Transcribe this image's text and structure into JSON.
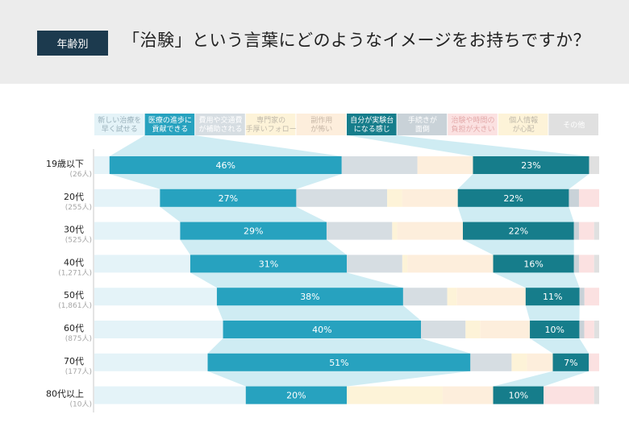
{
  "header": {
    "tag": "年齢別",
    "title": "「治験」という言葉にどのようなイメージをお持ちですか？"
  },
  "chart_data": {
    "type": "bar",
    "stacked": true,
    "orientation": "horizontal",
    "percent": true,
    "series": [
      {
        "name": "新しい治療を早く試せる",
        "label_lines": [
          "新しい治療を",
          "早く試せる"
        ],
        "color": "#e4f3f8",
        "label_color": "#9ab1bb",
        "values": [
          3,
          13,
          17,
          19,
          25,
          26,
          22,
          30
        ]
      },
      {
        "name": "医療の進歩に貢献できる",
        "label_lines": [
          "医療の進歩に",
          "貢献できる"
        ],
        "color": "#27a2bf",
        "label_color": "#ffffff",
        "values": [
          46,
          27,
          29,
          31,
          38,
          40,
          51,
          20
        ]
      },
      {
        "name": "費用や交通費が補助される",
        "label_lines": [
          "費用や交通費",
          "が補助される"
        ],
        "color": "#d6dde2",
        "label_color": "#ffffff",
        "values": [
          15,
          18,
          13,
          11,
          9,
          9,
          8,
          0
        ]
      },
      {
        "name": "専門家の手厚いフォロー",
        "label_lines": [
          "専門家の",
          "手厚いフォロー"
        ],
        "color": "#fdf3d8",
        "label_color": "#c0b9aa",
        "values": [
          0,
          3,
          1,
          1,
          2,
          3,
          3,
          19
        ]
      },
      {
        "name": "副作用が怖い",
        "label_lines": [
          "副作用",
          "が怖い"
        ],
        "color": "#fdeedc",
        "label_color": "#c6b6a6",
        "values": [
          11,
          11,
          13,
          17,
          14,
          10,
          5,
          10
        ]
      },
      {
        "name": "自分が実験台になる感じ",
        "label_lines": [
          "自分が実験台",
          "になる感じ"
        ],
        "color": "#167d8b",
        "label_color": "#ffffff",
        "values": [
          23,
          22,
          22,
          16,
          11,
          10,
          7,
          10
        ]
      },
      {
        "name": "手続きが面倒",
        "label_lines": [
          "手続きが",
          "面倒"
        ],
        "color": "#c9d2d8",
        "label_color": "#ffffff",
        "values": [
          0,
          2,
          1,
          1,
          1,
          1,
          0,
          0
        ]
      },
      {
        "name": "治験や時間の負担が大きい",
        "label_lines": [
          "治験や時間の",
          "負担が大きい"
        ],
        "color": "#fbe1e1",
        "label_color": "#e3aaaa",
        "values": [
          0,
          4,
          3,
          3,
          3,
          2,
          2,
          10
        ]
      },
      {
        "name": "個人情報が心配",
        "label_lines": [
          "個人情報",
          "が心配"
        ],
        "color": "#fdf3d8",
        "label_color": "#c0b9aa",
        "values": [
          0,
          0,
          0,
          0,
          0,
          0,
          0,
          0
        ]
      },
      {
        "name": "その他",
        "label_lines": [
          "その他"
        ],
        "color": "#e0e0e0",
        "label_color": "#ffffff",
        "values": [
          2,
          0,
          1,
          1,
          0,
          1,
          0,
          1
        ]
      }
    ],
    "categories": [
      {
        "label": "19歳以下",
        "n": "(26人)"
      },
      {
        "label": "20代",
        "n": "(255人)"
      },
      {
        "label": "30代",
        "n": "(525人)"
      },
      {
        "label": "40代",
        "n": "(1,271人)"
      },
      {
        "label": "50代",
        "n": "(1,861人)"
      },
      {
        "label": "60代",
        "n": "(875人)"
      },
      {
        "label": "70代",
        "n": "(177人)"
      },
      {
        "label": "80代以上",
        "n": "(10人)"
      }
    ],
    "value_labels": {
      "医療の進歩に貢献できる": [
        "46%",
        "27%",
        "29%",
        "31%",
        "38%",
        "40%",
        "51%",
        "20%"
      ],
      "自分が実験台になる感じ": [
        "23%",
        "22%",
        "22%",
        "16%",
        "11%",
        "10%",
        "7%",
        "10%"
      ]
    },
    "highlight_bands": [
      "医療の進歩に貢献できる",
      "自分が実験台になる感じ"
    ],
    "band_colors": {
      "医療の進歩に貢献できる": "#c7e9f1",
      "自分が実験台になる感じ": "#c7e9f1"
    }
  }
}
